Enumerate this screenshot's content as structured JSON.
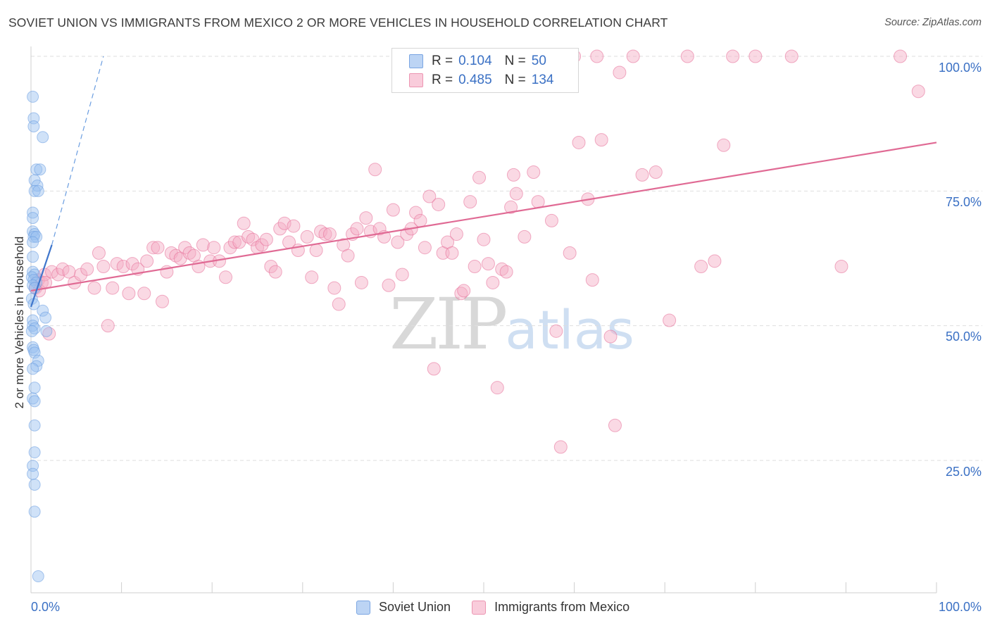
{
  "header": {
    "title": "SOVIET UNION VS IMMIGRANTS FROM MEXICO 2 OR MORE VEHICLES IN HOUSEHOLD CORRELATION CHART",
    "source": "Source: ZipAtlas.com"
  },
  "watermark": {
    "zip": "ZIP",
    "atlas": "atlas"
  },
  "legend": {
    "rows": [
      {
        "r_label": "R =",
        "r_value": "0.104",
        "n_label": "N =",
        "n_value": "50",
        "color": "#aac8f0",
        "border": "#5b8fd6"
      },
      {
        "r_label": "R =",
        "r_value": "0.485",
        "n_label": "N =",
        "n_value": "134",
        "color": "#f8c4d4",
        "border": "#e87fa2"
      }
    ]
  },
  "bottom_legend": {
    "series1": "Soviet Union",
    "series2": "Immigrants from Mexico"
  },
  "chart_data": {
    "type": "scatter",
    "title": "SOVIET UNION VS IMMIGRANTS FROM MEXICO 2 OR MORE VEHICLES IN HOUSEHOLD CORRELATION CHART",
    "xlabel": "",
    "ylabel": "2 or more Vehicles in Household",
    "xlim": [
      0,
      100
    ],
    "ylim": [
      0,
      105
    ],
    "x_tick_labels": [
      "0.0%",
      "100.0%"
    ],
    "y_tick_labels": [
      "25.0%",
      "50.0%",
      "75.0%",
      "100.0%"
    ],
    "y_tick_values": [
      25,
      50,
      75,
      100
    ],
    "grid": true,
    "legend_position": "top-center",
    "series": [
      {
        "name": "Soviet Union",
        "R": 0.104,
        "N": 50,
        "color": "#6a9de0",
        "fill": "rgba(150,190,240,0.45)",
        "trend": {
          "x": [
            0,
            2.3
          ],
          "y": [
            53.5,
            65.0
          ],
          "style": "solid"
        },
        "trend_ext": {
          "x": [
            2.3,
            8.0
          ],
          "y": [
            65.0,
            100.0
          ],
          "style": "dashed"
        },
        "points": [
          [
            0.2,
            92.5
          ],
          [
            0.3,
            88.5
          ],
          [
            0.3,
            87.0
          ],
          [
            1.3,
            85.0
          ],
          [
            0.6,
            79.0
          ],
          [
            1.0,
            79.0
          ],
          [
            0.4,
            77.0
          ],
          [
            0.7,
            76.0
          ],
          [
            0.4,
            75.0
          ],
          [
            0.8,
            75.0
          ],
          [
            0.2,
            71.0
          ],
          [
            0.2,
            70.0
          ],
          [
            0.2,
            67.5
          ],
          [
            0.4,
            67.0
          ],
          [
            0.3,
            66.5
          ],
          [
            0.6,
            66.5
          ],
          [
            0.2,
            65.5
          ],
          [
            0.2,
            62.8
          ],
          [
            0.2,
            60.0
          ],
          [
            0.4,
            59.5
          ],
          [
            0.1,
            59.0
          ],
          [
            0.3,
            58.5
          ],
          [
            0.6,
            58.0
          ],
          [
            0.2,
            57.5
          ],
          [
            0.4,
            57.0
          ],
          [
            1.3,
            52.8
          ],
          [
            0.2,
            51.0
          ],
          [
            1.6,
            51.5
          ],
          [
            0.2,
            50.0
          ],
          [
            0.4,
            49.5
          ],
          [
            0.1,
            49.0
          ],
          [
            1.7,
            49.0
          ],
          [
            0.2,
            46.0
          ],
          [
            0.3,
            45.5
          ],
          [
            0.4,
            45.0
          ],
          [
            0.8,
            43.5
          ],
          [
            0.6,
            42.5
          ],
          [
            0.2,
            42.0
          ],
          [
            0.4,
            38.5
          ],
          [
            0.2,
            36.5
          ],
          [
            0.4,
            36.0
          ],
          [
            0.4,
            31.5
          ],
          [
            0.4,
            26.5
          ],
          [
            0.2,
            24.0
          ],
          [
            0.2,
            22.5
          ],
          [
            0.4,
            20.5
          ],
          [
            0.4,
            15.5
          ],
          [
            0.8,
            3.5
          ],
          [
            0.1,
            55.0
          ],
          [
            0.3,
            54.0
          ]
        ]
      },
      {
        "name": "Immigrants from Mexico",
        "R": 0.485,
        "N": 134,
        "color": "#e56d97",
        "fill": "rgba(245,170,195,0.45)",
        "trend": {
          "x": [
            0,
            100
          ],
          "y": [
            56.5,
            84.0
          ],
          "style": "solid"
        },
        "points": [
          [
            0.5,
            57.0
          ],
          [
            0.8,
            58.5
          ],
          [
            1.2,
            58.0
          ],
          [
            1.5,
            59.5
          ],
          [
            0.9,
            56.5
          ],
          [
            2.0,
            48.5
          ],
          [
            1.6,
            58.0
          ],
          [
            2.3,
            60.0
          ],
          [
            3.0,
            59.5
          ],
          [
            3.5,
            60.5
          ],
          [
            4.2,
            60.0
          ],
          [
            4.8,
            58.0
          ],
          [
            5.5,
            59.5
          ],
          [
            6.2,
            60.5
          ],
          [
            7.0,
            57.0
          ],
          [
            7.5,
            63.5
          ],
          [
            8.0,
            61.0
          ],
          [
            8.5,
            50.0
          ],
          [
            9.0,
            57.0
          ],
          [
            9.5,
            61.5
          ],
          [
            10.2,
            61.0
          ],
          [
            10.8,
            56.0
          ],
          [
            11.2,
            61.5
          ],
          [
            11.8,
            60.5
          ],
          [
            12.5,
            56.0
          ],
          [
            12.8,
            62.0
          ],
          [
            13.5,
            64.5
          ],
          [
            14.0,
            64.5
          ],
          [
            14.5,
            54.5
          ],
          [
            15.0,
            60.0
          ],
          [
            15.5,
            63.5
          ],
          [
            16.0,
            63.0
          ],
          [
            16.5,
            62.5
          ],
          [
            17.0,
            64.5
          ],
          [
            17.5,
            63.5
          ],
          [
            18.0,
            63.0
          ],
          [
            18.5,
            61.0
          ],
          [
            19.0,
            65.0
          ],
          [
            19.8,
            62.0
          ],
          [
            20.2,
            64.5
          ],
          [
            20.8,
            62.0
          ],
          [
            21.5,
            59.0
          ],
          [
            22.0,
            64.5
          ],
          [
            22.5,
            65.5
          ],
          [
            23.0,
            65.5
          ],
          [
            23.5,
            69.0
          ],
          [
            24.0,
            66.5
          ],
          [
            24.5,
            66.0
          ],
          [
            25.0,
            64.5
          ],
          [
            25.5,
            65.0
          ],
          [
            26.0,
            66.0
          ],
          [
            26.5,
            61.0
          ],
          [
            27.0,
            60.0
          ],
          [
            27.5,
            68.0
          ],
          [
            28.0,
            69.0
          ],
          [
            28.5,
            65.5
          ],
          [
            29.0,
            68.5
          ],
          [
            29.5,
            64.0
          ],
          [
            30.5,
            66.5
          ],
          [
            31.0,
            59.0
          ],
          [
            31.5,
            64.0
          ],
          [
            32.0,
            67.5
          ],
          [
            32.5,
            67.0
          ],
          [
            33.0,
            67.0
          ],
          [
            33.5,
            57.0
          ],
          [
            34.0,
            54.0
          ],
          [
            34.5,
            65.0
          ],
          [
            35.0,
            63.0
          ],
          [
            35.5,
            67.0
          ],
          [
            36.0,
            68.0
          ],
          [
            36.5,
            58.0
          ],
          [
            37.0,
            70.0
          ],
          [
            37.5,
            67.5
          ],
          [
            38.0,
            79.0
          ],
          [
            38.5,
            68.0
          ],
          [
            39.0,
            66.5
          ],
          [
            39.5,
            57.5
          ],
          [
            40.0,
            71.5
          ],
          [
            40.5,
            65.5
          ],
          [
            41.0,
            59.5
          ],
          [
            41.5,
            67.0
          ],
          [
            42.0,
            68.0
          ],
          [
            42.5,
            71.0
          ],
          [
            43.0,
            69.5
          ],
          [
            43.5,
            64.5
          ],
          [
            44.0,
            74.0
          ],
          [
            44.5,
            42.0
          ],
          [
            45.0,
            72.5
          ],
          [
            45.5,
            63.5
          ],
          [
            46.0,
            65.5
          ],
          [
            46.5,
            63.5
          ],
          [
            47.0,
            67.0
          ],
          [
            47.5,
            56.0
          ],
          [
            47.8,
            56.5
          ],
          [
            48.5,
            73.0
          ],
          [
            49.0,
            61.0
          ],
          [
            49.5,
            77.5
          ],
          [
            50.0,
            66.0
          ],
          [
            50.5,
            61.5
          ],
          [
            51.0,
            58.0
          ],
          [
            51.5,
            38.5
          ],
          [
            52.0,
            60.5
          ],
          [
            52.5,
            60.0
          ],
          [
            53.0,
            72.0
          ],
          [
            53.3,
            78.0
          ],
          [
            53.6,
            74.5
          ],
          [
            54.5,
            66.5
          ],
          [
            55.5,
            78.5
          ],
          [
            56.0,
            73.0
          ],
          [
            57.5,
            69.5
          ],
          [
            58.0,
            49.0
          ],
          [
            58.5,
            27.5
          ],
          [
            59.5,
            63.5
          ],
          [
            60.0,
            100.0
          ],
          [
            60.5,
            84.0
          ],
          [
            61.5,
            73.5
          ],
          [
            62.0,
            58.5
          ],
          [
            62.5,
            100.0
          ],
          [
            63.0,
            84.5
          ],
          [
            64.0,
            48.0
          ],
          [
            64.5,
            31.5
          ],
          [
            65.0,
            97.0
          ],
          [
            66.5,
            100.0
          ],
          [
            67.5,
            78.0
          ],
          [
            69.0,
            78.5
          ],
          [
            70.5,
            51.0
          ],
          [
            72.5,
            100.0
          ],
          [
            74.0,
            61.0
          ],
          [
            75.5,
            62.0
          ],
          [
            76.5,
            83.5
          ],
          [
            77.5,
            100.0
          ],
          [
            80.0,
            100.0
          ],
          [
            84.0,
            100.0
          ],
          [
            96.0,
            100.0
          ],
          [
            98.0,
            93.5
          ],
          [
            89.5,
            61.0
          ]
        ]
      }
    ]
  }
}
